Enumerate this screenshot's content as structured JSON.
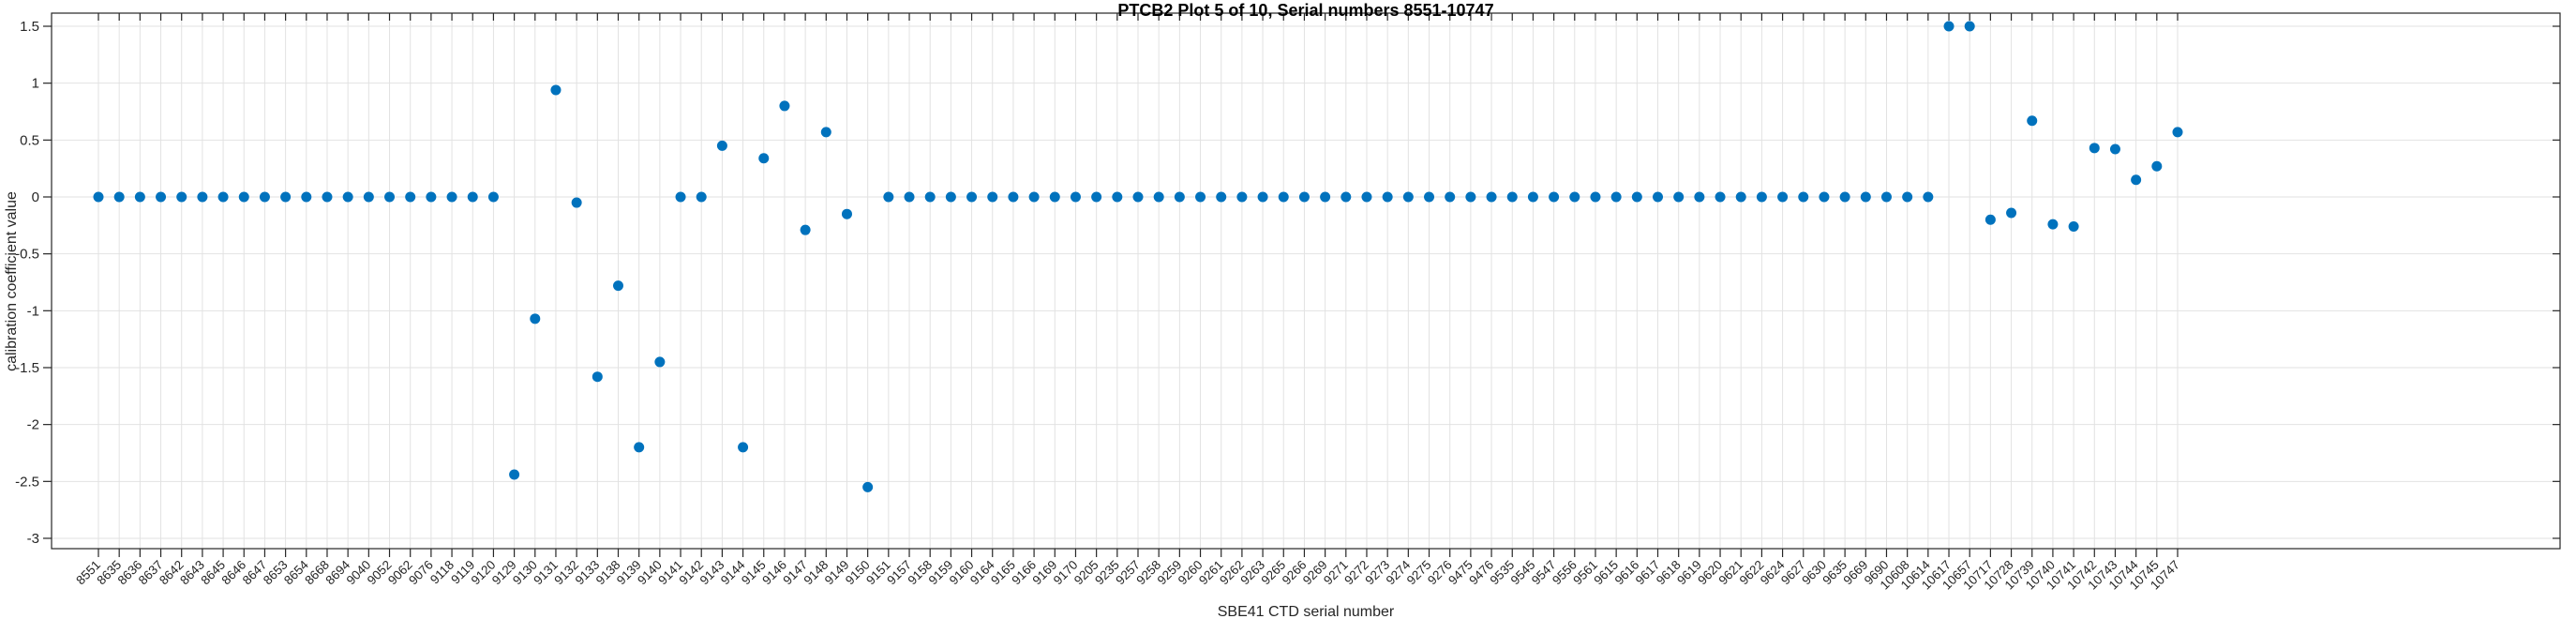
{
  "figure": {
    "title": "PTCB2 Plot 5 of 10, Serial numbers 8551-10747",
    "xlabel": "SBE41 CTD serial number",
    "ylabel": "calibration coefficient value"
  },
  "chart_data": {
    "type": "scatter",
    "title": "PTCB2 Plot 5 of 10, Serial numbers 8551-10747",
    "xlabel": "SBE41 CTD serial number",
    "ylabel": "calibration coefficient value",
    "legend": "none",
    "grid": "on",
    "marker": "filled-circle",
    "marker_color": "#0072BD",
    "axis_color": "#262626",
    "grid_color": "#e2e2e2",
    "ylim": [
      -3,
      1.5
    ],
    "y_ticks": [
      1.5,
      1,
      0.5,
      0,
      -0.5,
      -1,
      -1.5,
      -2,
      -2.5,
      -3
    ],
    "y_tick_labels": [
      "1.5",
      "1",
      "0.5",
      "0",
      "-0.5",
      "-1",
      "-1.5",
      "-2",
      "-2.5",
      "-3"
    ],
    "x_tick_labels": [
      "8551",
      "8635",
      "8636",
      "8637",
      "8642",
      "8643",
      "8645",
      "8646",
      "8647",
      "8653",
      "8654",
      "8668",
      "8694",
      "9040",
      "9052",
      "9062",
      "9076",
      "9118",
      "9119",
      "9120",
      "9129",
      "9130",
      "9131",
      "9132",
      "9133",
      "9138",
      "9139",
      "9140",
      "9141",
      "9142",
      "9143",
      "9144",
      "9145",
      "9146",
      "9147",
      "9148",
      "9149",
      "9150",
      "9151",
      "9157",
      "9158",
      "9159",
      "9160",
      "9164",
      "9165",
      "9166",
      "9169",
      "9170",
      "9205",
      "9235",
      "9257",
      "9258",
      "9259",
      "9260",
      "9261",
      "9262",
      "9263",
      "9265",
      "9266",
      "9269",
      "9271",
      "9272",
      "9273",
      "9274",
      "9275",
      "9276",
      "9475",
      "9476",
      "9535",
      "9545",
      "9547",
      "9556",
      "9561",
      "9615",
      "9616",
      "9617",
      "9618",
      "9619",
      "9620",
      "9621",
      "9622",
      "9624",
      "9627",
      "9630",
      "9635",
      "9669",
      "9690",
      "10608",
      "10614",
      "10617",
      "10657",
      "10717",
      "10728",
      "10739",
      "10740",
      "10741",
      "10742",
      "10743",
      "10744",
      "10745",
      "10747"
    ],
    "values": [
      0,
      0,
      0,
      0,
      0,
      0,
      0,
      0,
      0,
      0,
      0,
      0,
      0,
      0,
      0,
      0,
      0,
      0,
      0,
      0,
      -2.44,
      -1.07,
      0.94,
      -0.05,
      -1.58,
      -0.78,
      -2.2,
      -1.45,
      0,
      0,
      0.45,
      -2.2,
      0.34,
      0.8,
      -0.29,
      0.57,
      -0.15,
      -2.55,
      0,
      0,
      0,
      0,
      0,
      0,
      0,
      0,
      0,
      0,
      0,
      0,
      0,
      0,
      0,
      0,
      0,
      0,
      0,
      0,
      0,
      0,
      0,
      0,
      0,
      0,
      0,
      0,
      0,
      0,
      0,
      0,
      0,
      0,
      0,
      0,
      0,
      0,
      0,
      0,
      0,
      0,
      0,
      0,
      0,
      0,
      0,
      0,
      0,
      0,
      0,
      1.5,
      1.5,
      -0.2,
      -0.14,
      0.67,
      -0.24,
      -0.26,
      0.43,
      0.42,
      0.15,
      0.27,
      0.57
    ]
  }
}
